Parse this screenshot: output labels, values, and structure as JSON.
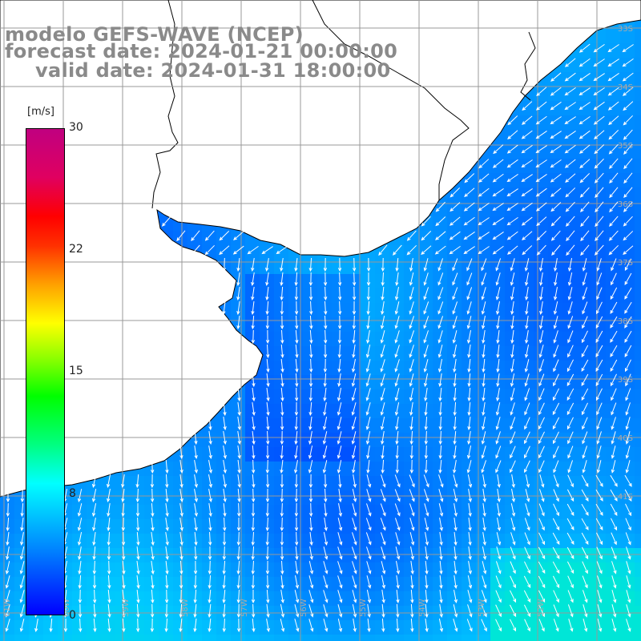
{
  "title": {
    "line1": "modelo GEFS-WAVE (NCEP)",
    "line2": "forecast date: 2024-01-21 00:00:00",
    "line3": "valid date: 2024-01-31 18:00:00"
  },
  "colorbar": {
    "unit": "[m/s]",
    "ticks": [
      "30",
      "22",
      "15",
      "8",
      "0"
    ],
    "min": 0,
    "max": 30,
    "colors": [
      "#0000ff",
      "#0080ff",
      "#00ffff",
      "#00ff80",
      "#00ff00",
      "#ffff00",
      "#ff8000",
      "#ff0000",
      "#c00080"
    ]
  },
  "map": {
    "lat_labels": [
      "33S",
      "34S",
      "35S",
      "36S",
      "37S",
      "38S",
      "39S",
      "40S",
      "41S"
    ],
    "lon_labels": [
      "61W",
      "60W",
      "59W",
      "58W",
      "57W",
      "56W",
      "55W",
      "54W",
      "53W",
      "52W"
    ],
    "land_color": "#ffffff",
    "grid_color": "#999999",
    "arrow_color": "#ffffff"
  }
}
